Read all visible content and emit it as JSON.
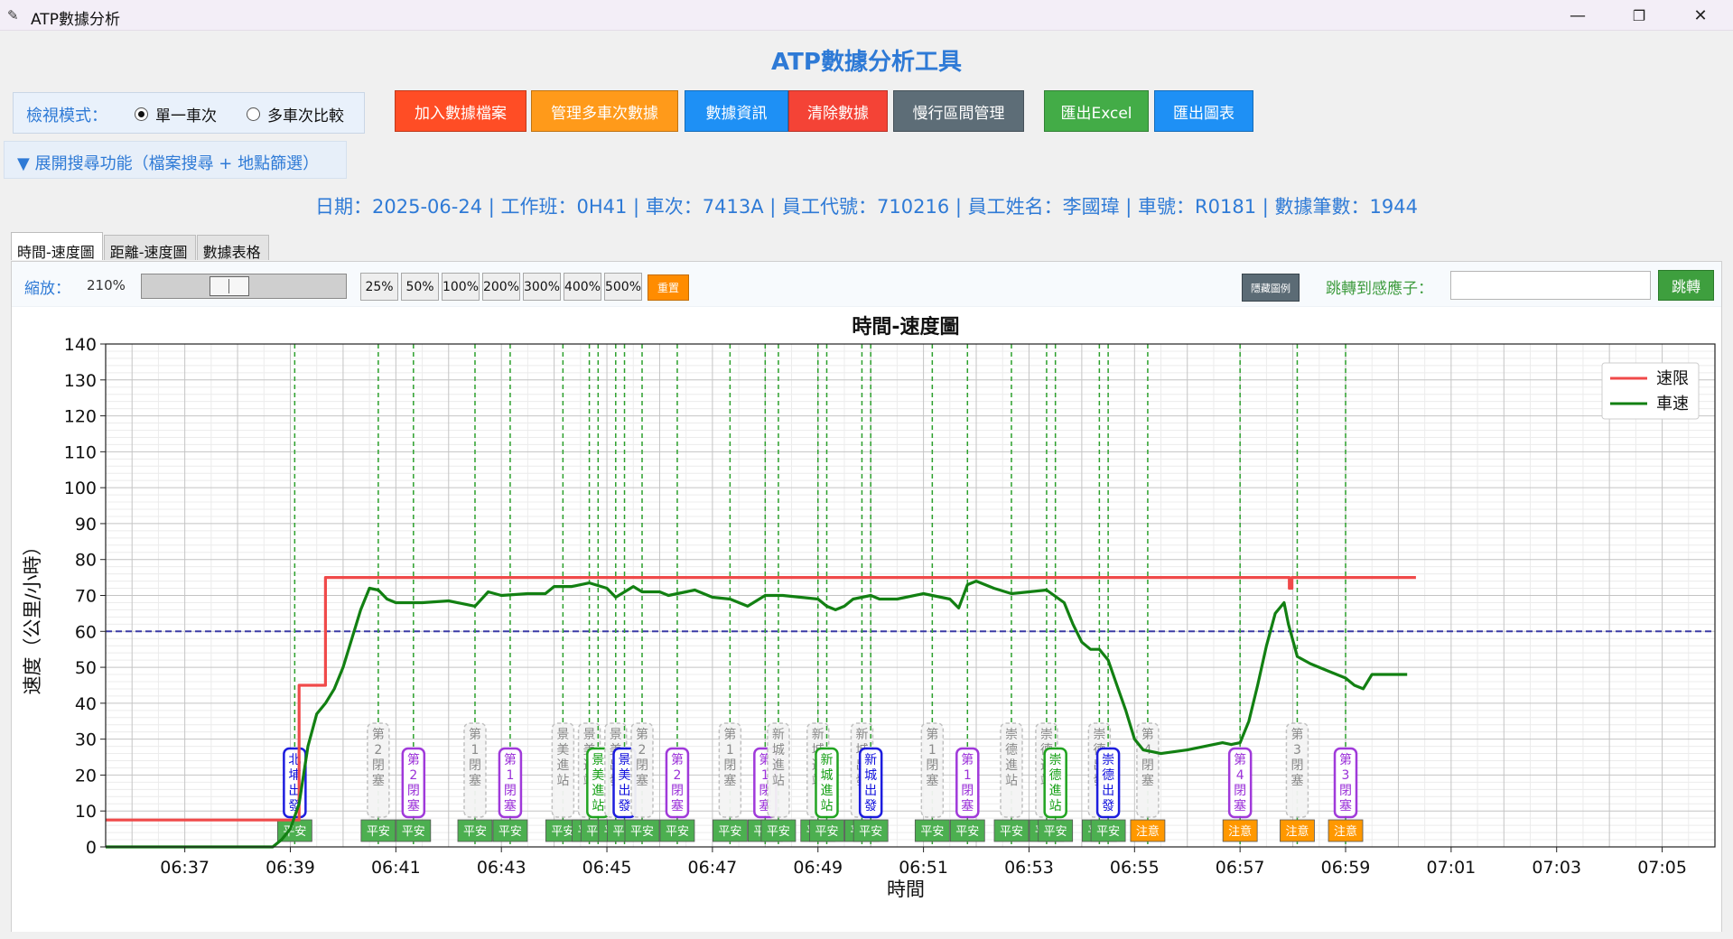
{
  "window": {
    "title": "ATP數據分析",
    "icon": "feather-icon",
    "minimize": "—",
    "restore": "❐",
    "close": "✕"
  },
  "app": {
    "heading": "ATP數據分析工具"
  },
  "mode": {
    "label": "檢視模式：",
    "options": [
      "單一車次",
      "多車次比較"
    ],
    "selected": "單一車次"
  },
  "toolbar": [
    {
      "label": "加入數據檔案",
      "color": "#ff4d25"
    },
    {
      "label": "管理多車次數據",
      "color": "#ff9a1a"
    },
    {
      "label": "數據資訊",
      "color": "#1e90f5"
    },
    {
      "label": "清除數據",
      "color": "#f44336"
    },
    {
      "label": "慢行區間管理",
      "color": "#5d6d77"
    },
    {
      "label": "匯出Excel",
      "color": "#43ac47"
    },
    {
      "label": "匯出圖表",
      "color": "#1e90f5"
    }
  ],
  "search_toggle": "▼ 展開搜尋功能（檔案搜尋 + 地點篩選）",
  "info_line": "日期：2025-06-24 | 工作班：0H41 | 車次：7413A | 員工代號：710216 | 員工姓名：李國瑋 | 車號：R0181 | 數據筆數：1944",
  "tabs": [
    "時間-速度圖",
    "距離-速度圖",
    "數據表格"
  ],
  "active_tab": "時間-速度圖",
  "zoom": {
    "label": "縮放：",
    "value": "210%",
    "level_percent": 210,
    "presets": [
      "25%",
      "50%",
      "100%",
      "200%",
      "300%",
      "400%",
      "500%"
    ],
    "reset": "重置"
  },
  "legend_toggle": "隱藏圖例",
  "jump": {
    "label": "跳轉到感應子：",
    "value": "",
    "button": "跳轉"
  },
  "colors": {
    "limit": "#f04a4a",
    "speed": "#128012",
    "threshold": "#1f1f9e",
    "event_line": "#2ca02c",
    "safe": "#4caf50",
    "caution": "#ff9800",
    "gray_tag": "#bdbdbd",
    "blue_tag": "#1111dd",
    "green_tag": "#16a016",
    "purple_tag": "#9b30d9"
  },
  "chart_data": {
    "type": "line",
    "title": "時間-速度圖",
    "xlabel": "時間",
    "ylabel": "速度（公里/小時）",
    "ylim": [
      0,
      140
    ],
    "xlim": [
      "06:35:30",
      "07:06:00"
    ],
    "yticks": [
      0,
      10,
      20,
      30,
      40,
      50,
      60,
      70,
      80,
      90,
      100,
      110,
      120,
      130,
      140
    ],
    "xticks": [
      "06:37",
      "06:39",
      "06:41",
      "06:43",
      "06:45",
      "06:47",
      "06:49",
      "06:51",
      "06:53",
      "06:55",
      "06:57",
      "06:59",
      "07:01",
      "07:03",
      "07:05"
    ],
    "grid": true,
    "legend": {
      "position": "top-right",
      "entries": [
        "速限",
        "車速"
      ]
    },
    "threshold_line": 60,
    "series": [
      {
        "name": "速限",
        "color": "#f04a4a",
        "points": [
          [
            "06:35:30",
            7.5
          ],
          [
            "06:39:10",
            7.5
          ],
          [
            "06:39:10",
            45
          ],
          [
            "06:39:40",
            45
          ],
          [
            "06:39:40",
            75
          ],
          [
            "06:57:56",
            75
          ],
          [
            "06:57:56",
            72
          ],
          [
            "06:57:59",
            72
          ],
          [
            "06:57:59",
            75
          ],
          [
            "07:00:20",
            75
          ]
        ]
      },
      {
        "name": "車速",
        "color": "#128012",
        "points": [
          [
            "06:35:30",
            0
          ],
          [
            "06:38:40",
            0
          ],
          [
            "06:38:50",
            2
          ],
          [
            "06:39:00",
            5
          ],
          [
            "06:39:10",
            12
          ],
          [
            "06:39:20",
            28
          ],
          [
            "06:39:30",
            37
          ],
          [
            "06:39:40",
            40
          ],
          [
            "06:39:50",
            44
          ],
          [
            "06:40:00",
            50
          ],
          [
            "06:40:10",
            58
          ],
          [
            "06:40:20",
            66
          ],
          [
            "06:40:30",
            72
          ],
          [
            "06:40:40",
            71.5
          ],
          [
            "06:40:50",
            69
          ],
          [
            "06:41:00",
            68
          ],
          [
            "06:41:30",
            68
          ],
          [
            "06:42:00",
            68.5
          ],
          [
            "06:42:30",
            67
          ],
          [
            "06:42:45",
            71
          ],
          [
            "06:43:00",
            70
          ],
          [
            "06:43:30",
            70.5
          ],
          [
            "06:43:50",
            70.5
          ],
          [
            "06:44:00",
            72.5
          ],
          [
            "06:44:20",
            72.5
          ],
          [
            "06:44:40",
            73.5
          ],
          [
            "06:45:00",
            72
          ],
          [
            "06:45:10",
            69.5
          ],
          [
            "06:45:30",
            72.5
          ],
          [
            "06:45:40",
            71
          ],
          [
            "06:46:00",
            71
          ],
          [
            "06:46:10",
            70
          ],
          [
            "06:46:30",
            71
          ],
          [
            "06:46:40",
            71.5
          ],
          [
            "06:47:00",
            69.5
          ],
          [
            "06:47:20",
            69
          ],
          [
            "06:47:40",
            67
          ],
          [
            "06:48:00",
            70
          ],
          [
            "06:48:20",
            70
          ],
          [
            "06:48:40",
            69.5
          ],
          [
            "06:49:00",
            69
          ],
          [
            "06:49:10",
            67
          ],
          [
            "06:49:20",
            66
          ],
          [
            "06:49:30",
            67
          ],
          [
            "06:49:40",
            69
          ],
          [
            "06:50:00",
            70
          ],
          [
            "06:50:10",
            69
          ],
          [
            "06:50:30",
            69
          ],
          [
            "06:50:40",
            69.5
          ],
          [
            "06:51:00",
            70.5
          ],
          [
            "06:51:30",
            69
          ],
          [
            "06:51:40",
            66.5
          ],
          [
            "06:51:50",
            73
          ],
          [
            "06:52:00",
            74
          ],
          [
            "06:52:20",
            72
          ],
          [
            "06:52:40",
            70.5
          ],
          [
            "06:53:00",
            71
          ],
          [
            "06:53:20",
            71.5
          ],
          [
            "06:53:40",
            68
          ],
          [
            "06:53:50",
            62
          ],
          [
            "06:54:00",
            57
          ],
          [
            "06:54:10",
            55
          ],
          [
            "06:54:20",
            55
          ],
          [
            "06:54:30",
            52
          ],
          [
            "06:54:40",
            45
          ],
          [
            "06:54:50",
            38
          ],
          [
            "06:55:00",
            30
          ],
          [
            "06:55:10",
            27
          ],
          [
            "06:55:30",
            26
          ],
          [
            "06:56:00",
            27
          ],
          [
            "06:56:20",
            28
          ],
          [
            "06:56:40",
            29
          ],
          [
            "06:56:50",
            28.5
          ],
          [
            "06:57:00",
            29
          ],
          [
            "06:57:10",
            35
          ],
          [
            "06:57:20",
            45
          ],
          [
            "06:57:30",
            56
          ],
          [
            "06:57:40",
            65
          ],
          [
            "06:57:50",
            68
          ],
          [
            "06:57:55",
            62
          ],
          [
            "06:58:05",
            53
          ],
          [
            "06:58:20",
            51
          ],
          [
            "06:58:40",
            49
          ],
          [
            "06:59:00",
            47
          ],
          [
            "06:59:10",
            45
          ],
          [
            "06:59:20",
            44
          ],
          [
            "06:59:30",
            48
          ],
          [
            "07:00:00",
            48
          ],
          [
            "07:00:10",
            48
          ]
        ]
      }
    ],
    "markers": [
      {
        "time": "06:39:05",
        "label": "北埔出發",
        "color": "blue",
        "tag": "平安"
      },
      {
        "time": "06:40:40",
        "label": "第2閉塞",
        "color": "gray",
        "tag": "平安"
      },
      {
        "time": "06:41:20",
        "label": "第2閉塞",
        "color": "purple",
        "tag": "平安"
      },
      {
        "time": "06:42:30",
        "label": "第1閉塞",
        "color": "gray",
        "tag": "平安"
      },
      {
        "time": "06:43:10",
        "label": "第1閉塞",
        "color": "purple",
        "tag": "平安"
      },
      {
        "time": "06:44:10",
        "label": "景美進站",
        "color": "gray",
        "tag": "平安"
      },
      {
        "time": "06:44:40",
        "label": "景美進站",
        "color": "gray",
        "tag": "平安"
      },
      {
        "time": "06:44:50",
        "label": "景美進站",
        "color": "green",
        "tag": "平安"
      },
      {
        "time": "06:45:10",
        "label": "景美出發",
        "color": "gray",
        "tag": "平安"
      },
      {
        "time": "06:45:20",
        "label": "景美出發",
        "color": "blue",
        "tag": "平安"
      },
      {
        "time": "06:45:40",
        "label": "第2閉塞",
        "color": "gray",
        "tag": "平安"
      },
      {
        "time": "06:46:20",
        "label": "第2閉塞",
        "color": "purple",
        "tag": "平安"
      },
      {
        "time": "06:47:20",
        "label": "第1閉塞",
        "color": "gray",
        "tag": "平安"
      },
      {
        "time": "06:48:00",
        "label": "第1閉塞",
        "color": "purple",
        "tag": "平安"
      },
      {
        "time": "06:48:15",
        "label": "新城進站",
        "color": "gray",
        "tag": "平安"
      },
      {
        "time": "06:49:00",
        "label": "新城進站",
        "color": "gray",
        "tag": "平安"
      },
      {
        "time": "06:49:10",
        "label": "新城進站",
        "color": "green",
        "tag": "平安"
      },
      {
        "time": "06:49:50",
        "label": "新城出發",
        "color": "gray",
        "tag": "平安"
      },
      {
        "time": "06:50:00",
        "label": "新城出發",
        "color": "blue",
        "tag": "平安"
      },
      {
        "time": "06:51:10",
        "label": "第1閉塞",
        "color": "gray",
        "tag": "平安"
      },
      {
        "time": "06:51:50",
        "label": "第1閉塞",
        "color": "purple",
        "tag": "平安"
      },
      {
        "time": "06:52:40",
        "label": "崇德進站",
        "color": "gray",
        "tag": "平安"
      },
      {
        "time": "06:53:20",
        "label": "崇德進站",
        "color": "gray",
        "tag": "平安"
      },
      {
        "time": "06:53:30",
        "label": "崇德進站",
        "color": "green",
        "tag": "平安"
      },
      {
        "time": "06:54:20",
        "label": "崇德出發",
        "color": "gray",
        "tag": "平安"
      },
      {
        "time": "06:54:30",
        "label": "崇德出發",
        "color": "blue",
        "tag": "平安"
      },
      {
        "time": "06:55:15",
        "label": "第4閉塞",
        "color": "gray",
        "tag": "注意"
      },
      {
        "time": "06:57:00",
        "label": "第4閉塞",
        "color": "purple",
        "tag": "注意"
      },
      {
        "time": "06:58:05",
        "label": "第3閉塞",
        "color": "gray",
        "tag": "注意"
      },
      {
        "time": "06:59:00",
        "label": "第3閉塞",
        "color": "purple",
        "tag": "注意"
      }
    ]
  }
}
